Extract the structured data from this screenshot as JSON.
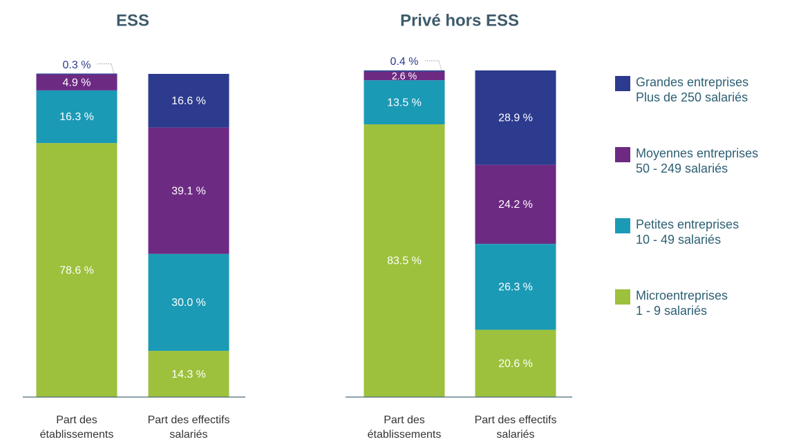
{
  "chart_data": [
    {
      "type": "bar",
      "stacked": true,
      "title": "ESS",
      "categories": [
        "Part des établissements",
        "Part des effectifs salariés"
      ],
      "ylim": [
        0,
        100
      ],
      "series": [
        {
          "name": "Microentreprises\n1 - 9 salariés",
          "color": "#9dc13c",
          "values": [
            78.6,
            14.3
          ],
          "value_labels": [
            "78.6 %",
            "14.3 %"
          ]
        },
        {
          "name": "Petites entreprises\n10 - 49 salariés",
          "color": "#1b9ab6",
          "values": [
            16.3,
            30.0
          ],
          "value_labels": [
            "16.3 %",
            "30.0 %"
          ]
        },
        {
          "name": "Moyennes entreprises\n50 - 249 salariés",
          "color": "#6d2a83",
          "values": [
            4.9,
            39.1
          ],
          "value_labels": [
            "4.9 %",
            "39.1 %"
          ]
        },
        {
          "name": "Grandes entreprises\nPlus de 250 salariés",
          "color": "#2c3b8e",
          "values": [
            0.3,
            16.6
          ],
          "value_labels": [
            "0.3 %",
            "16.6 %"
          ]
        }
      ]
    },
    {
      "type": "bar",
      "stacked": true,
      "title": "Privé hors ESS",
      "categories": [
        "Part des établissements",
        "Part des effectifs salariés"
      ],
      "ylim": [
        0,
        100
      ],
      "series": [
        {
          "name": "Microentreprises\n1 - 9 salariés",
          "color": "#9dc13c",
          "values": [
            83.5,
            20.6
          ],
          "value_labels": [
            "83.5 %",
            "20.6 %"
          ]
        },
        {
          "name": "Petites entreprises\n10 - 49 salariés",
          "color": "#1b9ab6",
          "values": [
            13.5,
            26.3
          ],
          "value_labels": [
            "13.5 %",
            "26.3 %"
          ]
        },
        {
          "name": "Moyennes entreprises\n50 - 249 salariés",
          "color": "#6d2a83",
          "values": [
            2.6,
            24.2
          ],
          "value_labels": [
            "2.6 %",
            "24.2 %"
          ]
        },
        {
          "name": "Grandes entreprises\nPlus de 250 salariés",
          "color": "#2c3b8e",
          "values": [
            0.4,
            28.9
          ],
          "value_labels": [
            "0.4 %",
            "28.9 %"
          ]
        }
      ]
    }
  ]
}
